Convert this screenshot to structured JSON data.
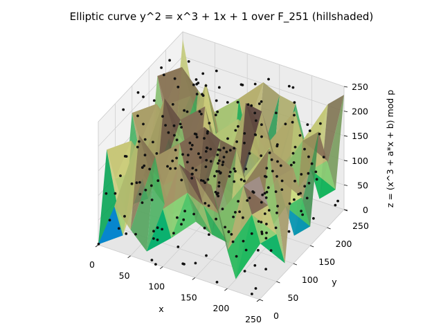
{
  "chart_data": {
    "type": "surface3d",
    "title": "Elliptic curve y^2 = x^3 + 1x + 1 over F_251 (hillshaded)",
    "xlabel": "x",
    "ylabel": "y",
    "zlabel": "z = (x^3 + a*x + b) mod p",
    "xlim": [
      0,
      250
    ],
    "ylim": [
      0,
      250
    ],
    "zlim": [
      0,
      250
    ],
    "x_ticks": [
      0,
      50,
      100,
      150,
      200,
      250
    ],
    "y_ticks": [
      0,
      50,
      100,
      150,
      200,
      250
    ],
    "z_ticks": [
      0,
      50,
      100,
      150,
      200,
      250
    ],
    "grid": true,
    "colormap": "terrain",
    "hillshaded": true,
    "curve": {
      "p": 251,
      "a": 1,
      "b": 1,
      "equation": "y^2 = x^3 + x + 1 mod 251"
    },
    "point_color": "#111111"
  }
}
